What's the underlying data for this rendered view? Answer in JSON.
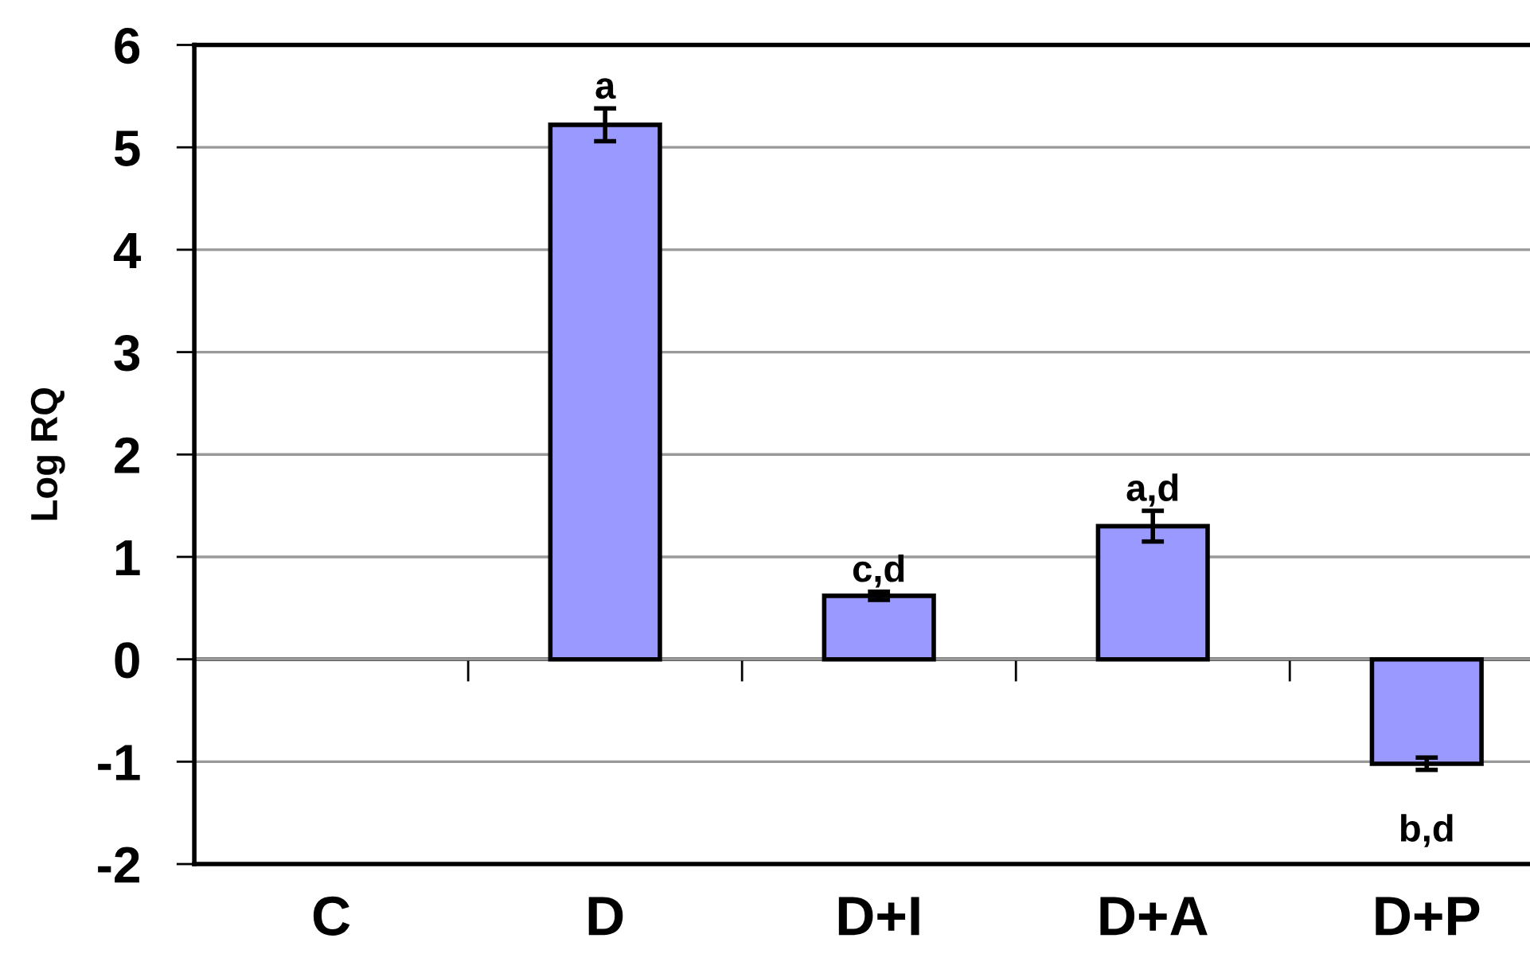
{
  "chart_data": {
    "type": "bar",
    "ylabel": "Log RQ",
    "categories": [
      "C",
      "D",
      "D+I",
      "D+A",
      "D+P"
    ],
    "series": [
      {
        "color": "#9999ff",
        "values": [
          null,
          5.22,
          0.62,
          1.3,
          -1.02
        ],
        "errors": [
          null,
          0.16,
          0.04,
          0.15,
          0.06
        ]
      }
    ],
    "ylim": [
      -2,
      6
    ],
    "yticks": [
      -2,
      -1,
      0,
      1,
      2,
      3,
      4,
      5,
      6
    ],
    "grid": "y",
    "annotations": [
      {
        "text": "a",
        "x": "D",
        "y": 5.22
      },
      {
        "text": "c,d",
        "x": "D+I",
        "y": 0.62
      },
      {
        "text": "a,d",
        "x": "D+A",
        "y": 1.3
      },
      {
        "text": "b,d",
        "x": "D+P",
        "y": -1.02
      }
    ]
  }
}
